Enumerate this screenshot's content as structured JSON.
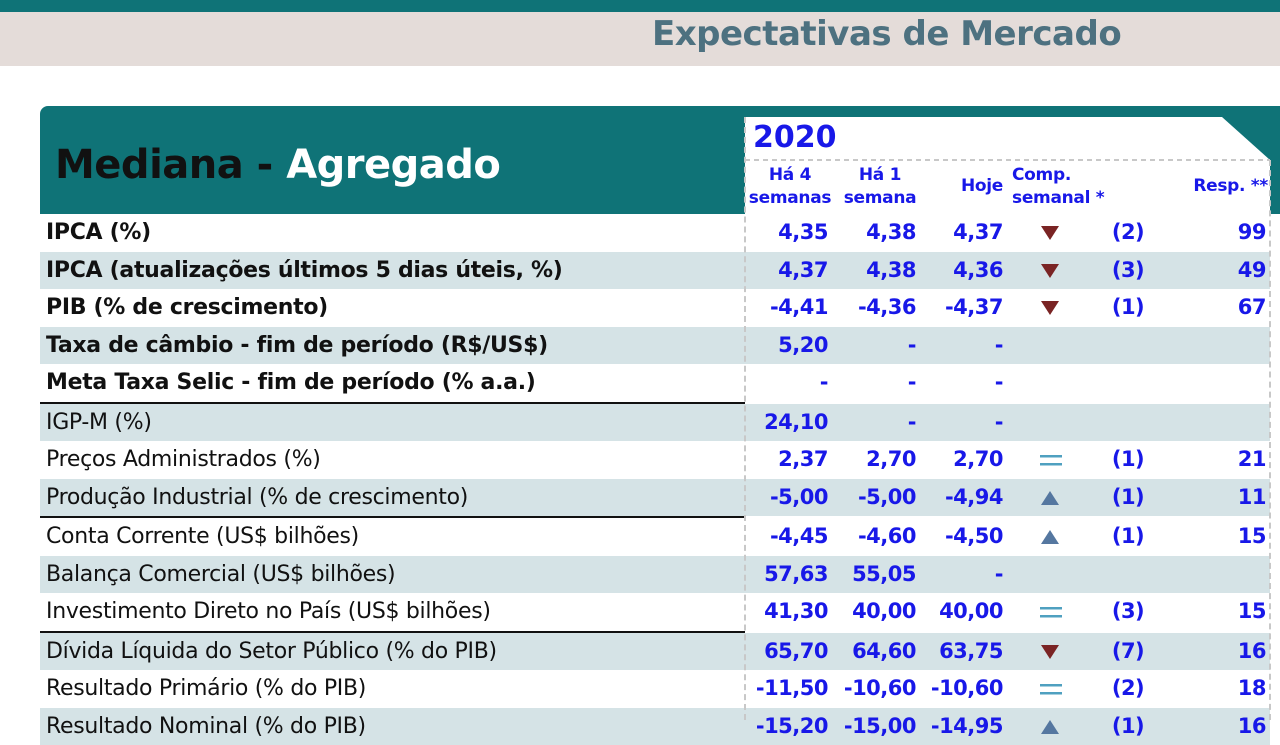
{
  "header": {
    "title": "Expectativas de Mercado"
  },
  "panel": {
    "title_dark": "Mediana -",
    "title_light": "Agregado",
    "year": "2020",
    "columns": [
      {
        "lines": [
          "Há 4",
          "semanas"
        ]
      },
      {
        "lines": [
          "Há 1",
          "semana"
        ]
      },
      {
        "lines": [
          "Hoje"
        ]
      },
      {
        "lines": [
          "Comp.",
          "semanal *"
        ]
      },
      {
        "lines": [
          "Resp. **"
        ]
      }
    ]
  },
  "rows": [
    {
      "label": "IPCA (%)",
      "bold": true,
      "values": [
        "4,35",
        "4,38",
        "4,37"
      ],
      "trend": "down",
      "change": "(2)",
      "responses": "99"
    },
    {
      "label": "IPCA (atualizações últimos 5 dias úteis, %)",
      "bold": true,
      "values": [
        "4,37",
        "4,38",
        "4,36"
      ],
      "trend": "down",
      "change": "(3)",
      "responses": "49"
    },
    {
      "label": "PIB (% de crescimento)",
      "bold": true,
      "values": [
        "-4,41",
        "-4,36",
        "-4,37"
      ],
      "trend": "down",
      "change": "(1)",
      "responses": "67"
    },
    {
      "label": "Taxa de câmbio - fim de período (R$/US$)",
      "bold": true,
      "values": [
        "5,20",
        "-",
        "-"
      ]
    },
    {
      "label": "Meta Taxa Selic - fim de período (% a.a.)",
      "bold": true,
      "values": [
        "-",
        "-",
        "-"
      ],
      "rule_after": true
    },
    {
      "label": "IGP-M (%)",
      "values": [
        "24,10",
        "-",
        "-"
      ]
    },
    {
      "label": "Preços Administrados (%)",
      "values": [
        "2,37",
        "2,70",
        "2,70"
      ],
      "trend": "equal",
      "change": "(1)",
      "responses": "21"
    },
    {
      "label": "Produção Industrial (% de crescimento)",
      "values": [
        "-5,00",
        "-5,00",
        "-4,94"
      ],
      "trend": "up",
      "change": "(1)",
      "responses": "11",
      "rule_after": true
    },
    {
      "label": "Conta Corrente (US$ bilhões)",
      "values": [
        "-4,45",
        "-4,60",
        "-4,50"
      ],
      "trend": "up",
      "change": "(1)",
      "responses": "15"
    },
    {
      "label": "Balança Comercial (US$ bilhões)",
      "values": [
        "57,63",
        "55,05",
        "-"
      ]
    },
    {
      "label": "Investimento Direto no País (US$ bilhões)",
      "values": [
        "41,30",
        "40,00",
        "40,00"
      ],
      "trend": "equal",
      "change": "(3)",
      "responses": "15",
      "rule_after": true
    },
    {
      "label": "Dívida Líquida do Setor Público (% do PIB)",
      "values": [
        "65,70",
        "64,60",
        "63,75"
      ],
      "trend": "down",
      "change": "(7)",
      "responses": "16"
    },
    {
      "label": "Resultado Primário (% do PIB)",
      "values": [
        "-11,50",
        "-10,60",
        "-10,60"
      ],
      "trend": "equal",
      "change": "(2)",
      "responses": "18"
    },
    {
      "label": "Resultado Nominal (% do PIB)",
      "values": [
        "-15,20",
        "-15,00",
        "-14,95"
      ],
      "trend": "up",
      "change": "(1)",
      "responses": "16"
    }
  ]
}
